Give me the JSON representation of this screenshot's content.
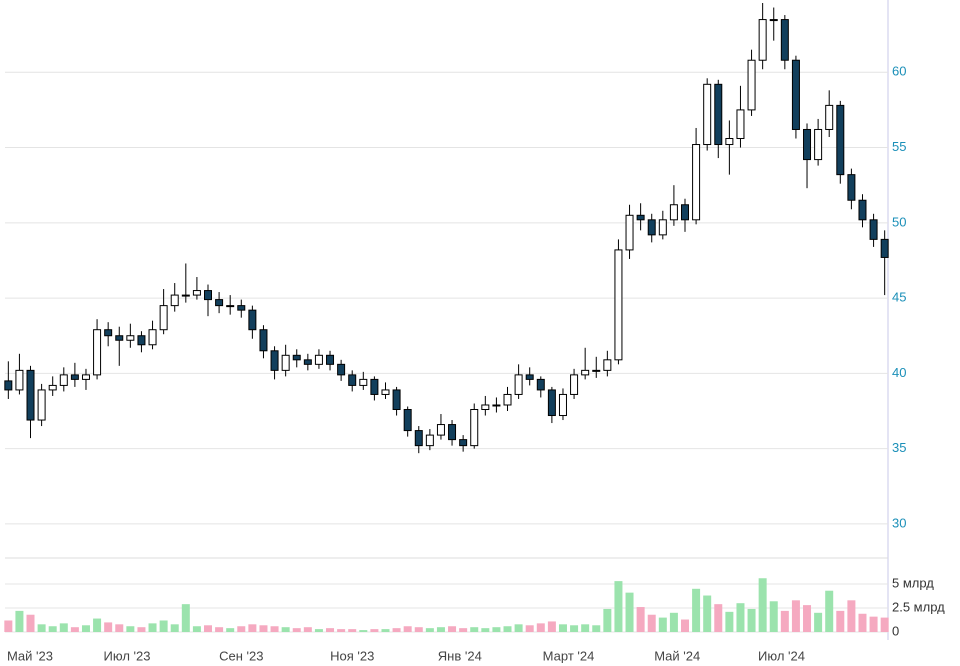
{
  "chart_data": [
    {
      "type": "candlestick",
      "open": [
        39.5,
        38.9,
        40.2,
        36.9,
        38.9,
        39.2,
        39.9,
        39.6,
        39.9,
        42.9,
        42.5,
        42.2,
        42.5,
        41.9,
        42.9,
        44.5,
        45.2,
        45.2,
        45.5,
        44.9,
        44.5,
        44.5,
        44.2,
        42.9,
        41.5,
        40.2,
        41.2,
        40.9,
        40.6,
        41.2,
        40.6,
        39.9,
        39.2,
        39.6,
        38.6,
        38.9,
        37.6,
        36.2,
        35.2,
        35.9,
        36.6,
        35.6,
        35.2,
        37.6,
        37.9,
        37.9,
        38.6,
        39.9,
        39.6,
        38.9,
        37.2,
        38.6,
        39.9,
        40.2,
        40.2,
        40.9,
        48.2,
        50.5,
        50.2,
        49.2,
        50.2,
        51.2,
        50.2,
        55.2,
        59.2,
        55.2,
        55.6,
        57.5,
        60.8,
        63.5,
        63.5,
        60.8,
        56.2,
        54.2,
        56.2,
        57.8,
        53.2,
        51.5,
        50.2,
        48.9
      ],
      "high": [
        40.8,
        41.3,
        40.5,
        39.3,
        39.8,
        40.4,
        40.7,
        40.3,
        43.6,
        43.4,
        43.1,
        43.3,
        42.8,
        43.5,
        45.6,
        46.0,
        47.3,
        46.4,
        45.9,
        45.4,
        45.2,
        44.9,
        44.5,
        43.2,
        41.8,
        41.9,
        41.6,
        41.3,
        41.6,
        41.5,
        40.9,
        40.2,
        40.1,
        39.8,
        39.4,
        39.1,
        37.8,
        36.5,
        36.3,
        37.3,
        36.9,
        35.9,
        38.0,
        38.5,
        38.4,
        39.1,
        40.6,
        40.4,
        39.8,
        39.1,
        39.0,
        40.3,
        41.7,
        41.1,
        41.5,
        48.9,
        51.2,
        51.3,
        50.6,
        50.8,
        52.5,
        51.6,
        56.3,
        59.6,
        59.5,
        56.8,
        59.1,
        61.5,
        64.6,
        64.3,
        63.8,
        61.1,
        56.6,
        56.9,
        58.8,
        58.1,
        53.6,
        51.9,
        50.6,
        49.5
      ],
      "low": [
        38.3,
        38.6,
        35.7,
        36.5,
        38.5,
        38.8,
        39.1,
        38.9,
        39.6,
        41.8,
        40.5,
        41.7,
        41.4,
        41.6,
        42.6,
        44.1,
        44.7,
        44.9,
        43.8,
        44.0,
        43.9,
        43.7,
        42.3,
        41.0,
        39.6,
        39.8,
        40.4,
        40.2,
        40.3,
        40.2,
        39.5,
        38.8,
        38.9,
        38.2,
        38.3,
        37.2,
        35.8,
        34.7,
        34.9,
        35.6,
        35.2,
        34.8,
        35.0,
        37.2,
        37.4,
        37.5,
        38.3,
        39.2,
        38.4,
        36.7,
        36.9,
        38.3,
        39.6,
        39.7,
        39.8,
        40.6,
        47.6,
        49.5,
        48.7,
        48.9,
        49.8,
        49.4,
        49.9,
        54.8,
        54.3,
        53.2,
        55.0,
        57.1,
        60.2,
        62.1,
        60.2,
        55.6,
        52.3,
        53.8,
        55.7,
        52.6,
        50.9,
        49.7,
        48.4,
        45.2
      ],
      "close": [
        38.9,
        40.2,
        36.9,
        38.9,
        39.2,
        39.9,
        39.6,
        39.9,
        42.9,
        42.5,
        42.2,
        42.5,
        41.9,
        42.9,
        44.5,
        45.2,
        45.2,
        45.5,
        44.9,
        44.5,
        44.5,
        44.2,
        42.9,
        41.5,
        40.2,
        41.2,
        40.9,
        40.6,
        41.2,
        40.6,
        39.9,
        39.2,
        39.6,
        38.6,
        38.9,
        37.6,
        36.2,
        35.2,
        35.9,
        36.6,
        35.6,
        35.2,
        37.6,
        37.9,
        37.9,
        38.6,
        39.9,
        39.6,
        38.9,
        37.2,
        38.6,
        39.9,
        40.2,
        40.2,
        40.9,
        48.2,
        50.5,
        50.2,
        49.2,
        50.2,
        51.2,
        50.2,
        55.2,
        59.2,
        55.2,
        55.6,
        57.5,
        60.8,
        63.5,
        63.5,
        60.8,
        56.2,
        54.2,
        56.2,
        57.8,
        53.2,
        51.5,
        50.2,
        48.9,
        47.7
      ],
      "up_color": "#ffffff",
      "down_color": "#123f5c",
      "edge_color": "#000000",
      "ylim": [
        28.6,
        64.8
      ],
      "yticks": [
        30,
        35,
        40,
        45,
        50,
        55,
        60
      ],
      "grid": true,
      "xlim": [
        -0.3,
        79.3
      ],
      "xticks": [
        {
          "value": 1.95,
          "label": "Май '23"
        },
        {
          "value": 10.7,
          "label": "Июл '23"
        },
        {
          "value": 21.0,
          "label": "Сен '23"
        },
        {
          "value": 31.0,
          "label": "Ноя '23"
        },
        {
          "value": 40.7,
          "label": "Янв '24"
        },
        {
          "value": 50.5,
          "label": "Март '24"
        },
        {
          "value": 60.3,
          "label": "Май '24"
        },
        {
          "value": 69.7,
          "label": "Июл '24"
        }
      ]
    },
    {
      "type": "bar",
      "values": [
        1.2,
        2.2,
        1.8,
        0.8,
        0.6,
        0.9,
        0.5,
        0.7,
        1.4,
        1.0,
        0.8,
        0.6,
        0.5,
        0.9,
        1.2,
        0.8,
        2.9,
        0.6,
        0.7,
        0.5,
        0.4,
        0.6,
        0.8,
        0.7,
        0.6,
        0.5,
        0.4,
        0.5,
        0.3,
        0.4,
        0.3,
        0.3,
        0.2,
        0.3,
        0.3,
        0.4,
        0.6,
        0.5,
        0.4,
        0.5,
        0.6,
        0.4,
        0.5,
        0.4,
        0.5,
        0.6,
        0.8,
        0.7,
        0.9,
        1.1,
        0.8,
        0.7,
        0.8,
        0.7,
        2.4,
        5.3,
        4.1,
        2.6,
        1.8,
        1.5,
        2.0,
        1.3,
        4.5,
        3.8,
        2.9,
        2.1,
        3.0,
        2.4,
        5.6,
        3.2,
        2.2,
        3.3,
        2.8,
        2.0,
        4.3,
        2.2,
        3.3,
        1.9,
        1.6,
        1.5
      ],
      "up_color": "#9be3ad",
      "down_color": "#f5a9c0",
      "ylim": [
        0,
        7.5
      ],
      "yticks": [
        0,
        {
          "value": 2.5,
          "label": "2.5 млрд"
        },
        {
          "value": 5,
          "label": "5 млрд"
        }
      ],
      "grid": true
    }
  ]
}
